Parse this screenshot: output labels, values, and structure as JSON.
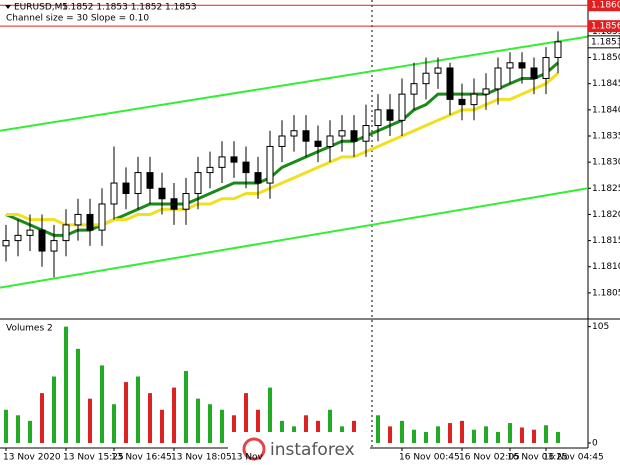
{
  "chart_data": [
    {
      "type": "candlestick",
      "title": "EURUSD,M5",
      "quote": "1.1852 1.1853 1.1852 1.1853",
      "subtitle": "Channel size = 30 Slope = 0.10",
      "categories": [
        "13 Nov 2020",
        null,
        null,
        null,
        null,
        "13 Nov 15:25",
        null,
        null,
        null,
        "13 Nov 16:45",
        null,
        null,
        null,
        null,
        "13 Nov 18:05",
        null,
        null,
        null,
        null,
        "13 Nov",
        null,
        null,
        null,
        null,
        null,
        null,
        null,
        null,
        null,
        null,
        null,
        null,
        null,
        "16 Nov 00:45",
        null,
        null,
        null,
        null,
        "16 Nov 02:05",
        null,
        null,
        null,
        "16 Nov 03:25",
        null,
        null,
        "16 Nov 04:45",
        null
      ],
      "open": [
        1.1814,
        1.1815,
        1.1816,
        1.1817,
        1.1813,
        1.1815,
        1.1818,
        1.182,
        1.1817,
        1.1822,
        1.1826,
        1.1824,
        1.1828,
        1.1825,
        1.1823,
        1.1821,
        1.1824,
        1.1828,
        1.1829,
        1.1831,
        1.183,
        1.1828,
        1.1826,
        1.1833,
        1.1835,
        1.1836,
        1.1834,
        1.1833,
        1.1835,
        1.1836,
        1.1834,
        1.1837,
        1.184,
        1.1838,
        1.1843,
        1.1845,
        1.1847,
        1.1848,
        1.1842,
        1.1841,
        1.1843,
        1.1844,
        1.1848,
        1.1849,
        1.1848,
        1.1846,
        1.185
      ],
      "high": [
        1.1818,
        1.1819,
        1.182,
        1.182,
        1.1818,
        1.1821,
        1.1823,
        1.1823,
        1.1825,
        1.1833,
        1.1829,
        1.1831,
        1.1831,
        1.1828,
        1.1826,
        1.1827,
        1.1831,
        1.1832,
        1.1834,
        1.1834,
        1.1833,
        1.1831,
        1.1836,
        1.1838,
        1.1839,
        1.1839,
        1.1837,
        1.1838,
        1.1839,
        1.1839,
        1.1841,
        1.1843,
        1.1843,
        1.1846,
        1.1849,
        1.185,
        1.185,
        1.1849,
        1.1845,
        1.1846,
        1.1847,
        1.185,
        1.1851,
        1.1851,
        1.185,
        1.1852,
        1.1855
      ],
      "low": [
        1.1811,
        1.1812,
        1.1813,
        1.181,
        1.1808,
        1.1812,
        1.1815,
        1.1814,
        1.1814,
        1.1819,
        1.1821,
        1.1821,
        1.1822,
        1.182,
        1.1818,
        1.1818,
        1.1821,
        1.1825,
        1.1826,
        1.1827,
        1.1825,
        1.1823,
        1.1823,
        1.183,
        1.1832,
        1.1831,
        1.183,
        1.183,
        1.1832,
        1.1831,
        1.1831,
        1.1834,
        1.1835,
        1.1835,
        1.184,
        1.1842,
        1.1844,
        1.1839,
        1.1838,
        1.1838,
        1.184,
        1.1841,
        1.1845,
        1.1845,
        1.1843,
        1.1843,
        1.1847
      ],
      "close": [
        1.1815,
        1.1816,
        1.1817,
        1.1813,
        1.1815,
        1.1818,
        1.182,
        1.1817,
        1.1822,
        1.1826,
        1.1824,
        1.1828,
        1.1825,
        1.1823,
        1.1821,
        1.1824,
        1.1828,
        1.1829,
        1.1831,
        1.183,
        1.1828,
        1.1826,
        1.1833,
        1.1835,
        1.1836,
        1.1834,
        1.1833,
        1.1835,
        1.1836,
        1.1834,
        1.1837,
        1.184,
        1.1838,
        1.1843,
        1.1845,
        1.1847,
        1.1848,
        1.1842,
        1.1841,
        1.1843,
        1.1844,
        1.1848,
        1.1849,
        1.1848,
        1.1846,
        1.185,
        1.1853
      ],
      "up_color": "#ffffff",
      "down_color": "#000000",
      "series": [
        {
          "color": "#1a8a1a",
          "values": [
            1.182,
            1.1819,
            1.1818,
            1.1817,
            1.1816,
            1.1816,
            1.1817,
            1.1817,
            1.1818,
            1.1819,
            1.182,
            1.1821,
            1.1822,
            1.1822,
            1.1822,
            1.1822,
            1.1823,
            1.1824,
            1.1825,
            1.1826,
            1.1826,
            1.1826,
            1.1827,
            1.1829,
            1.183,
            1.1831,
            1.1832,
            1.1833,
            1.1834,
            1.1834,
            1.1835,
            1.1836,
            1.1837,
            1.1838,
            1.184,
            1.1841,
            1.1843,
            1.1843,
            1.1843,
            1.1843,
            1.1843,
            1.1844,
            1.1845,
            1.1846,
            1.1846,
            1.1847,
            1.1849
          ]
        },
        {
          "color": "#f0e020",
          "values": [
            1.182,
            1.182,
            1.1819,
            1.1819,
            1.1819,
            1.1818,
            1.1818,
            1.1818,
            1.1818,
            1.1819,
            1.1819,
            1.182,
            1.182,
            1.1821,
            1.1821,
            1.1821,
            1.1822,
            1.1822,
            1.1823,
            1.1823,
            1.1824,
            1.1824,
            1.1825,
            1.1826,
            1.1827,
            1.1828,
            1.1829,
            1.183,
            1.1831,
            1.1831,
            1.1832,
            1.1833,
            1.1834,
            1.1835,
            1.1836,
            1.1837,
            1.1838,
            1.1839,
            1.184,
            1.184,
            1.1841,
            1.1842,
            1.1842,
            1.1843,
            1.1844,
            1.1845,
            1.1847
          ]
        }
      ],
      "lines": [
        {
          "color": "#33ee33",
          "values": [
            1.1836,
            1.1854
          ]
        },
        {
          "color": "#33ee33",
          "values": [
            1.1806,
            1.1825
          ]
        }
      ],
      "levels": [
        {
          "value": 1.186,
          "label": "1.1860"
        },
        {
          "value": 1.1856,
          "label": "1.1856"
        }
      ],
      "level_color": "#e02020",
      "last_price": {
        "value": 1.1853,
        "label": "1.1853"
      },
      "ylim": [
        1.18002,
        1.1861
      ],
      "yticks": [
        1.1805,
        {
          "value": 1.181,
          "label": "1.1810"
        },
        1.1815,
        {
          "value": 1.182,
          "label": "1.1820"
        },
        1.1825,
        {
          "value": 1.183,
          "label": "1.1830"
        },
        1.1835,
        {
          "value": 1.184,
          "label": "1.1840"
        },
        1.1845,
        {
          "value": 1.185,
          "label": "1.1850"
        },
        1.1855
      ]
    },
    {
      "type": "bar",
      "title": "Volumes 2",
      "values": [
        30,
        25,
        20,
        45,
        60,
        105,
        85,
        40,
        70,
        35,
        55,
        60,
        45,
        30,
        50,
        65,
        40,
        35,
        30,
        25,
        45,
        30,
        50,
        20,
        15,
        25,
        20,
        30,
        15,
        20,
        10,
        25,
        15,
        20,
        12,
        10,
        15,
        18,
        20,
        12,
        15,
        10,
        18,
        14,
        12,
        16,
        10
      ],
      "up_color": "#22aa22",
      "down_color": "#dd2222",
      "ylim": [
        0,
        111
      ],
      "yticks": [
        0,
        105
      ]
    }
  ],
  "watermark": "instaforex"
}
